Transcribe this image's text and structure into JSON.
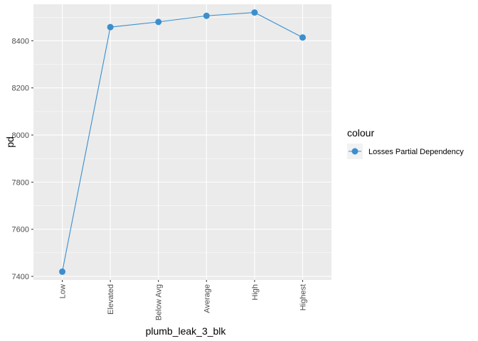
{
  "chart_data": {
    "type": "line",
    "title": "",
    "xlabel": "plumb_leak_3_blk",
    "ylabel": "pd",
    "categories": [
      "Low",
      "Elevated",
      "Below Avg",
      "Average",
      "High",
      "Highest"
    ],
    "series": [
      {
        "name": "Losses Partial Dependency",
        "values": [
          7420,
          8458,
          8480,
          8506,
          8520,
          8414
        ],
        "color": "#3a8fce"
      }
    ],
    "ylim": [
      7385,
      8555
    ],
    "yticks": [
      7400,
      7600,
      7800,
      8000,
      8200,
      8400
    ],
    "grid": true,
    "legend": {
      "title": "colour",
      "position": "right"
    }
  }
}
